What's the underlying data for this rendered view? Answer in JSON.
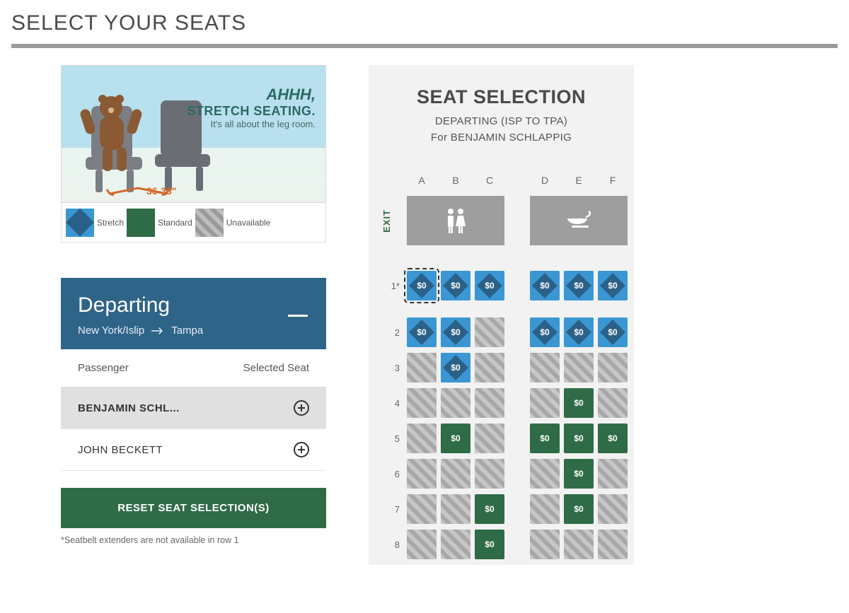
{
  "page_title": "SELECT YOUR SEATS",
  "promo": {
    "line1": "AHHH,",
    "line2": "STRETCH SEATING.",
    "line3": "It's all about the leg room.",
    "legroom": "36-38\""
  },
  "legend": {
    "stretch": "Stretch",
    "standard": "Standard",
    "unavailable": "Unavailable"
  },
  "departing": {
    "title": "Departing",
    "from": "New York/Islip",
    "to": "Tampa",
    "head_passenger": "Passenger",
    "head_seat": "Selected Seat",
    "passengers": [
      {
        "name": "BENJAMIN SCHL...",
        "selected": true
      },
      {
        "name": "JOHN BECKETT",
        "selected": false
      }
    ]
  },
  "reset_label": "RESET SEAT SELECTION(S)",
  "footnote": "*Seatbelt extenders are not available in row 1",
  "seatmap": {
    "title": "SEAT SELECTION",
    "leg_label": "DEPARTING (ISP TO TPA)",
    "for_label": "For BENJAMIN SCHLAPPIG",
    "exit_label": "EXIT",
    "columns": [
      "A",
      "B",
      "C",
      "D",
      "E",
      "F"
    ],
    "rows": [
      {
        "label": "1*",
        "seats": [
          {
            "type": "stretch",
            "price": "$0",
            "outlined": true
          },
          {
            "type": "stretch",
            "price": "$0"
          },
          {
            "type": "stretch",
            "price": "$0"
          },
          {
            "type": "stretch",
            "price": "$0"
          },
          {
            "type": "stretch",
            "price": "$0"
          },
          {
            "type": "stretch",
            "price": "$0"
          }
        ]
      },
      {
        "label": "2",
        "seats": [
          {
            "type": "stretch",
            "price": "$0"
          },
          {
            "type": "stretch",
            "price": "$0"
          },
          {
            "type": "unavail"
          },
          {
            "type": "stretch",
            "price": "$0"
          },
          {
            "type": "stretch",
            "price": "$0"
          },
          {
            "type": "stretch",
            "price": "$0"
          }
        ]
      },
      {
        "label": "3",
        "seats": [
          {
            "type": "unavail"
          },
          {
            "type": "stretch",
            "price": "$0"
          },
          {
            "type": "unavail"
          },
          {
            "type": "unavail"
          },
          {
            "type": "unavail"
          },
          {
            "type": "unavail"
          }
        ]
      },
      {
        "label": "4",
        "seats": [
          {
            "type": "unavail"
          },
          {
            "type": "unavail"
          },
          {
            "type": "unavail"
          },
          {
            "type": "unavail"
          },
          {
            "type": "standard",
            "price": "$0"
          },
          {
            "type": "unavail"
          }
        ]
      },
      {
        "label": "5",
        "seats": [
          {
            "type": "unavail"
          },
          {
            "type": "standard",
            "price": "$0"
          },
          {
            "type": "unavail"
          },
          {
            "type": "standard",
            "price": "$0"
          },
          {
            "type": "standard",
            "price": "$0"
          },
          {
            "type": "standard",
            "price": "$0"
          }
        ]
      },
      {
        "label": "6",
        "seats": [
          {
            "type": "unavail"
          },
          {
            "type": "unavail"
          },
          {
            "type": "unavail"
          },
          {
            "type": "unavail"
          },
          {
            "type": "standard",
            "price": "$0"
          },
          {
            "type": "unavail"
          }
        ]
      },
      {
        "label": "7",
        "seats": [
          {
            "type": "unavail"
          },
          {
            "type": "unavail"
          },
          {
            "type": "standard",
            "price": "$0"
          },
          {
            "type": "unavail"
          },
          {
            "type": "standard",
            "price": "$0"
          },
          {
            "type": "unavail"
          }
        ]
      },
      {
        "label": "8",
        "seats": [
          {
            "type": "unavail"
          },
          {
            "type": "unavail"
          },
          {
            "type": "standard",
            "price": "$0"
          },
          {
            "type": "unavail"
          },
          {
            "type": "unavail"
          },
          {
            "type": "unavail"
          }
        ]
      }
    ]
  },
  "colors": {
    "stretch_outer": "#3b97d3",
    "stretch_inner": "#2b6188",
    "standard": "#2f6b46",
    "unavail_light": "#c7c7c7",
    "unavail_dark": "#a8a8a8",
    "header_blue": "#2f6489",
    "amenity_gray": "#9e9e9e"
  }
}
